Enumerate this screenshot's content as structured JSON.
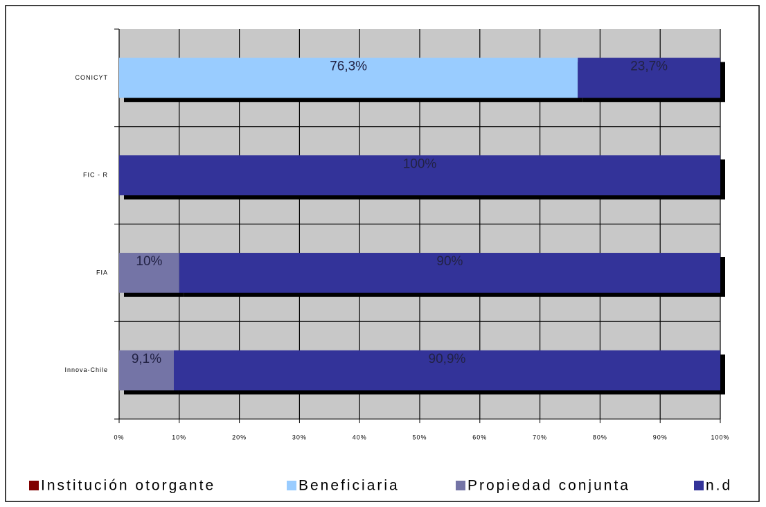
{
  "chart_data": {
    "type": "stacked_barh",
    "categories": [
      "CONICYT",
      "FIC - R",
      "FIA",
      "Innova-Chile"
    ],
    "series": [
      {
        "name": "Institución otorgante",
        "color": "#800000",
        "values": [
          0,
          0,
          0,
          0
        ],
        "value_labels": [
          null,
          null,
          null,
          null
        ]
      },
      {
        "name": "Beneficiaria",
        "color": "#99ccff",
        "values": [
          76.3,
          0,
          0,
          0
        ],
        "value_labels": [
          "76,3%",
          null,
          null,
          null
        ]
      },
      {
        "name": "Propiedad conjunta",
        "color": "#7474a6",
        "values": [
          0,
          0,
          10,
          9.1
        ],
        "value_labels": [
          null,
          null,
          "10%",
          "9,1%"
        ]
      },
      {
        "name": "n.d",
        "color": "#333399",
        "values": [
          23.7,
          100,
          90,
          90.9
        ],
        "value_labels": [
          "23,7%",
          "100%",
          "90%",
          "90,9%"
        ]
      }
    ],
    "xlim": [
      0,
      100
    ],
    "xticks": [
      {
        "value": 0,
        "label": "0%"
      },
      {
        "value": 10,
        "label": "10%"
      },
      {
        "value": 20,
        "label": "20%"
      },
      {
        "value": 30,
        "label": "30%"
      },
      {
        "value": 40,
        "label": "40%"
      },
      {
        "value": 50,
        "label": "50%"
      },
      {
        "value": 60,
        "label": "60%"
      },
      {
        "value": 70,
        "label": "70%"
      },
      {
        "value": 80,
        "label": "80%"
      },
      {
        "value": 90,
        "label": "90%"
      },
      {
        "value": 100,
        "label": "100%"
      }
    ],
    "grid": true,
    "legend": "bottom"
  }
}
